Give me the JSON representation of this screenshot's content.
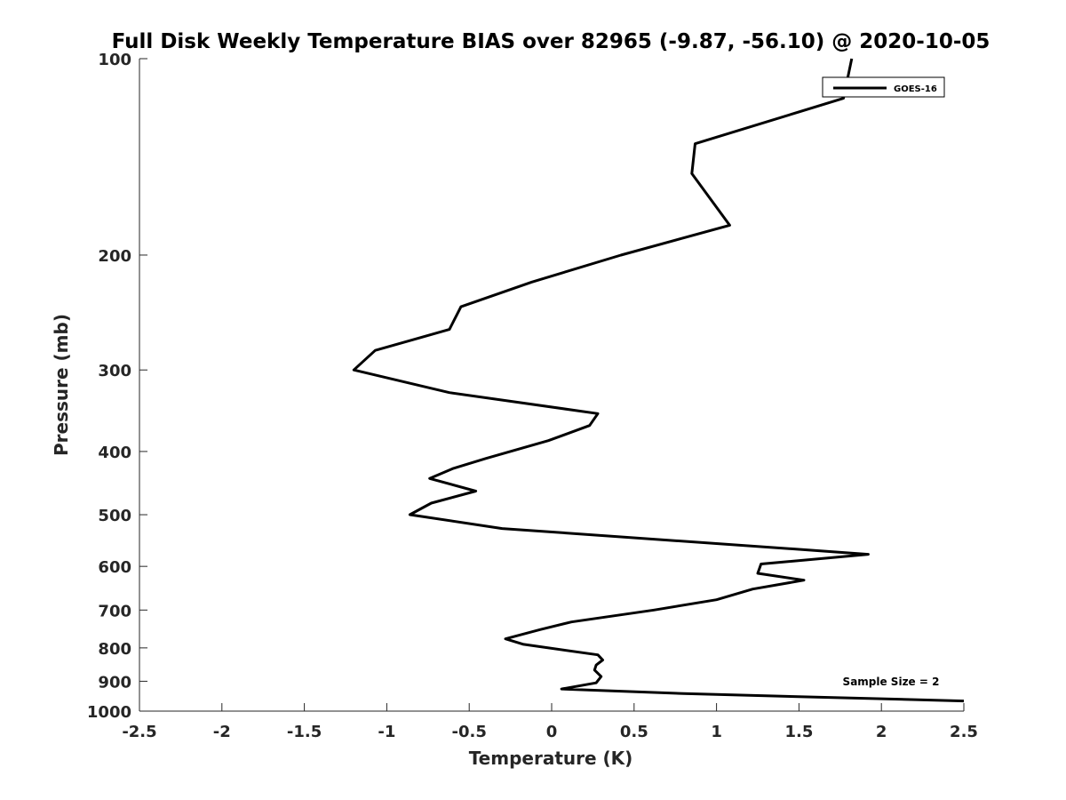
{
  "chart_data": {
    "type": "line",
    "title": "Full Disk Weekly Temperature BIAS over 82965 (-9.87, -56.10) @ 2020-10-05",
    "xlabel": "Temperature (K)",
    "ylabel": "Pressure (mb)",
    "xlim": [
      -2.5,
      2.5
    ],
    "ylim": [
      100,
      1000
    ],
    "y_scale": "log",
    "y_reversed": true,
    "grid": false,
    "x_ticks": [
      "-2.5",
      "-2",
      "-1.5",
      "-1",
      "-0.5",
      "0",
      "0.5",
      "1",
      "1.5",
      "2",
      "2.5"
    ],
    "y_ticks": [
      "100",
      "200",
      "300",
      "400",
      "500",
      "600",
      "700",
      "800",
      "900",
      "1000"
    ],
    "legend": {
      "placement": "top-right",
      "entries": [
        "GOES-16"
      ]
    },
    "annotation": "Sample Size = 2",
    "series": [
      {
        "name": "GOES-16",
        "color": "#000000",
        "points": [
          [
            1.82,
            100
          ],
          [
            1.77,
            115
          ],
          [
            0.87,
            135
          ],
          [
            0.85,
            150
          ],
          [
            1.08,
            180
          ],
          [
            0.42,
            200
          ],
          [
            -0.12,
            220
          ],
          [
            -0.55,
            240
          ],
          [
            -0.62,
            260
          ],
          [
            -1.07,
            280
          ],
          [
            -1.2,
            300
          ],
          [
            -0.62,
            325
          ],
          [
            0.28,
            350
          ],
          [
            0.23,
            365
          ],
          [
            -0.02,
            385
          ],
          [
            -0.4,
            410
          ],
          [
            -0.6,
            425
          ],
          [
            -0.74,
            440
          ],
          [
            -0.46,
            460
          ],
          [
            -0.73,
            480
          ],
          [
            -0.86,
            500
          ],
          [
            -0.3,
            525
          ],
          [
            1.5,
            565
          ],
          [
            1.92,
            575
          ],
          [
            1.27,
            595
          ],
          [
            1.25,
            615
          ],
          [
            1.53,
            630
          ],
          [
            1.22,
            650
          ],
          [
            1.0,
            675
          ],
          [
            0.62,
            700
          ],
          [
            0.12,
            730
          ],
          [
            -0.07,
            750
          ],
          [
            -0.28,
            775
          ],
          [
            -0.17,
            790
          ],
          [
            0.28,
            820
          ],
          [
            0.31,
            835
          ],
          [
            0.27,
            850
          ],
          [
            0.26,
            865
          ],
          [
            0.3,
            885
          ],
          [
            0.27,
            905
          ],
          [
            0.06,
            925
          ],
          [
            0.8,
            940
          ],
          [
            2.5,
            965
          ]
        ]
      }
    ]
  }
}
